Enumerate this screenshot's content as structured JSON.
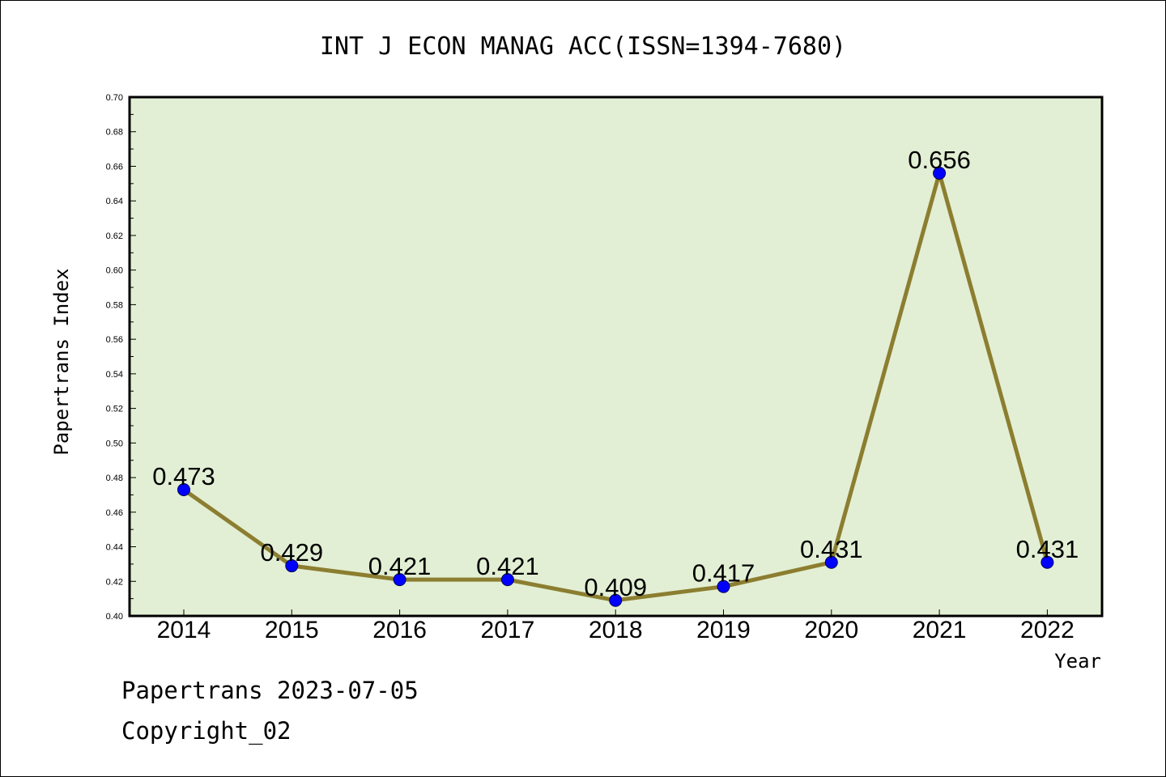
{
  "chart_data": {
    "type": "line",
    "title": "INT J ECON MANAG ACC(ISSN=1394-7680)",
    "xlabel": "Year",
    "ylabel": "Papertrans Index",
    "categories": [
      "2014",
      "2015",
      "2016",
      "2017",
      "2018",
      "2019",
      "2020",
      "2021",
      "2022"
    ],
    "values": [
      0.473,
      0.429,
      0.421,
      0.421,
      0.409,
      0.417,
      0.431,
      0.656,
      0.431
    ],
    "data_labels": [
      "0.473",
      "0.429",
      "0.421",
      "0.421",
      "0.409",
      "0.417",
      "0.431",
      "0.656",
      "0.431"
    ],
    "ylim": [
      0.4,
      0.7
    ],
    "yticks": [
      "0.40",
      "0.42",
      "0.44",
      "0.46",
      "0.48",
      "0.50",
      "0.52",
      "0.54",
      "0.56",
      "0.58",
      "0.60",
      "0.62",
      "0.64",
      "0.66",
      "0.68",
      "0.70"
    ],
    "grid": false,
    "legend": "none",
    "colors": {
      "plot_background": "#e2efd4",
      "line": "#8c7e30",
      "marker": "#0000ff"
    }
  },
  "footer": {
    "line1": "Papertrans 2023-07-05",
    "line2": "Copyright_02"
  }
}
